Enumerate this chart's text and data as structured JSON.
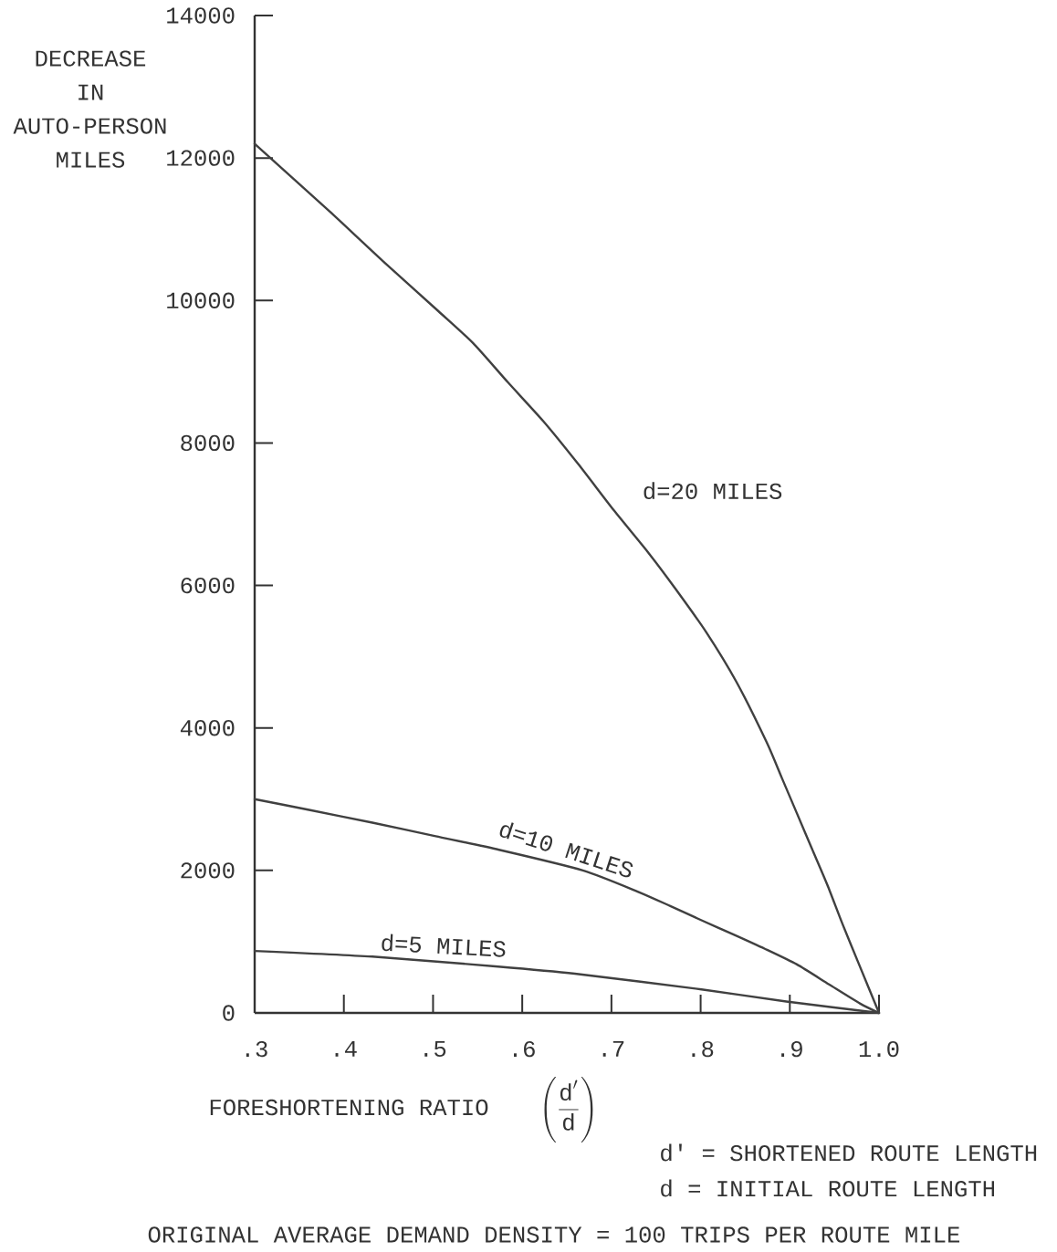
{
  "chart_data": {
    "type": "line",
    "ylabel": "DECREASE IN AUTO-PERSON MILES",
    "xlabel": "\\text{FORESHORTENING RATIO}\\qquad\\left(\\frac{\\text{d}'}{\\text{d}}\\right)",
    "xlim": [
      0.3,
      1.0
    ],
    "ylim": [
      0,
      14000
    ],
    "xticks": [
      {
        "value": 0.3,
        "label": ".3"
      },
      {
        "value": 0.4,
        "label": ".4"
      },
      {
        "value": 0.5,
        "label": ".5"
      },
      {
        "value": 0.6,
        "label": ".6"
      },
      {
        "value": 0.7,
        "label": ".7"
      },
      {
        "value": 0.8,
        "label": ".8"
      },
      {
        "value": 0.9,
        "label": ".9"
      },
      {
        "value": 1.0,
        "label": "1.0"
      }
    ],
    "yticks": [
      0,
      2000,
      4000,
      6000,
      8000,
      10000,
      12000,
      14000
    ],
    "series": [
      {
        "name": "d=20 MILES",
        "color": "#404040",
        "x": [
          0.3,
          0.384,
          0.444,
          0.506,
          0.545,
          0.584,
          0.624,
          0.663,
          0.703,
          0.742,
          0.772,
          0.806,
          0.84,
          0.874,
          0.891,
          0.908,
          0.925,
          0.942,
          0.959,
          0.977,
          1.0
        ],
        "values": [
          12200,
          11250,
          10550,
          9850,
          9400,
          8850,
          8300,
          7700,
          7050,
          6450,
          5950,
          5350,
          4650,
          3800,
          3300,
          2800,
          2300,
          1800,
          1250,
          700,
          0
        ]
      },
      {
        "name": "d=10 MILES",
        "color": "#404040",
        "x": [
          0.3,
          0.361,
          0.432,
          0.503,
          0.574,
          0.668,
          0.73,
          0.766,
          0.801,
          0.837,
          0.872,
          0.908,
          0.944,
          0.979,
          1.0
        ],
        "values": [
          3000,
          2850,
          2670,
          2480,
          2290,
          2000,
          1700,
          1500,
          1300,
          1100,
          900,
          680,
          400,
          130,
          0
        ]
      },
      {
        "name": "d=5 MILES",
        "color": "#404040",
        "x": [
          0.3,
          0.432,
          0.573,
          0.659,
          0.801,
          0.896,
          1.0
        ],
        "values": [
          870,
          790,
          650,
          550,
          330,
          160,
          0
        ]
      }
    ],
    "annotations": [
      "d' = SHORTENED ROUTE LENGTH",
      "d = INITIAL ROUTE LENGTH",
      "ORIGINAL AVERAGE DEMAND DENSITY = 100 TRIPS PER ROUTE MILE"
    ]
  }
}
